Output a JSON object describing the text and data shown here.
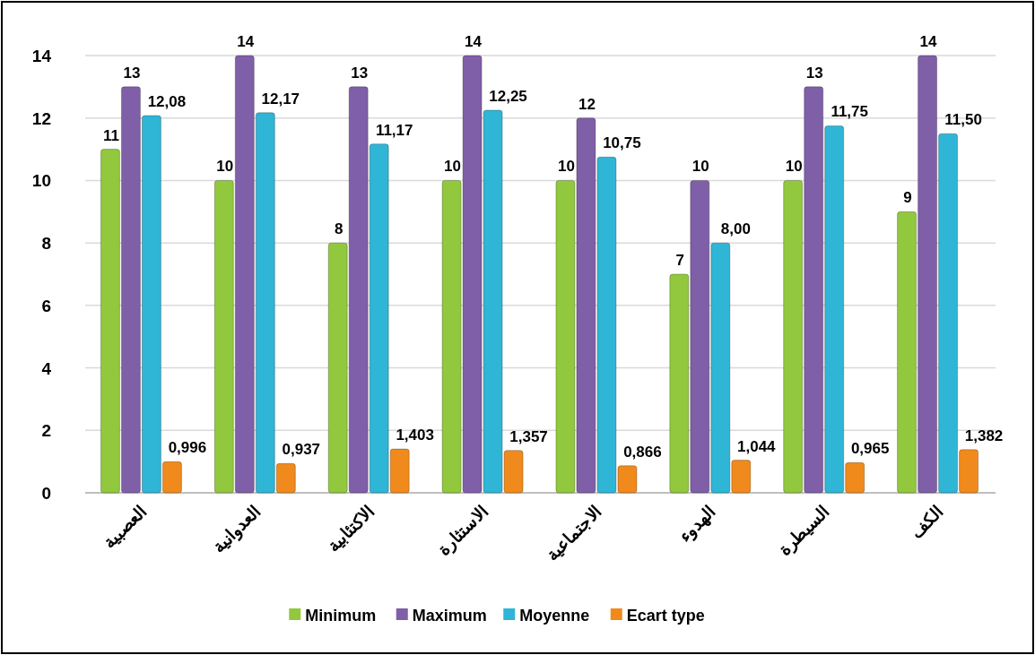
{
  "chart_data": {
    "type": "bar",
    "categories": [
      "العصبية",
      "العدوانية",
      "الاكتئابية",
      "الاستثارة",
      "الاجتماعية",
      "الهدوء",
      "السيطرة",
      "الكف"
    ],
    "series": [
      {
        "name": "Minimum",
        "color": "#92c83e",
        "values": [
          11,
          10,
          8,
          10,
          10,
          7,
          10,
          9
        ],
        "value_labels": [
          "11",
          "10",
          "8",
          "10",
          "10",
          "7",
          "10",
          "9"
        ]
      },
      {
        "name": "Maximum",
        "color": "#7f5fa8",
        "values": [
          13,
          14,
          13,
          14,
          12,
          10,
          13,
          14
        ],
        "value_labels": [
          "13",
          "14",
          "13",
          "14",
          "12",
          "10",
          "13",
          "14"
        ]
      },
      {
        "name": "Moyenne",
        "color": "#2fb5d6",
        "values": [
          12.08,
          12.17,
          11.17,
          12.25,
          10.75,
          8.0,
          11.75,
          11.5
        ],
        "value_labels": [
          "12,08",
          "12,17",
          "11,17",
          "12,25",
          "10,75",
          "8,00",
          "11,75",
          "11,50"
        ]
      },
      {
        "name": "Ecart type",
        "color": "#f08a1c",
        "values": [
          0.996,
          0.937,
          1.403,
          1.357,
          0.866,
          1.044,
          0.965,
          1.382
        ],
        "value_labels": [
          "0,996",
          "0,937",
          "1,403",
          "1,357",
          "0,866",
          "1,044",
          "0,965",
          "1,382"
        ]
      }
    ],
    "ylim": [
      0,
      14
    ],
    "yticks": [
      0,
      2,
      4,
      6,
      8,
      10,
      12,
      14
    ],
    "grid": "y",
    "legend": "bottom"
  }
}
